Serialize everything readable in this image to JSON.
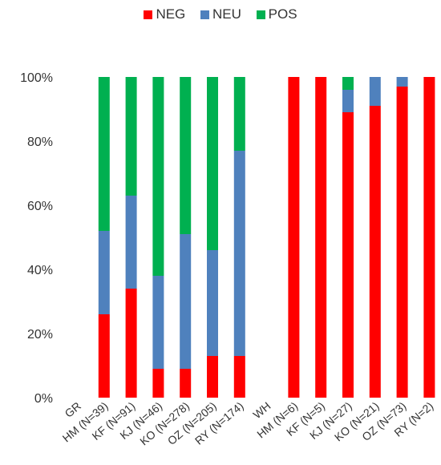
{
  "chart_data": {
    "type": "bar",
    "stacked": true,
    "ylim": [
      0,
      100
    ],
    "yticks": [
      "0%",
      "20%",
      "40%",
      "60%",
      "80%",
      "100%"
    ],
    "legend_position": "top",
    "categories": [
      "GR",
      "HM (N=39)",
      "KF (N=91)",
      "KJ (N=46)",
      "KO (N=278)",
      "OZ (N=205)",
      "RY (N=174)",
      "WH",
      "HM (N=6)",
      "KF (N=5)",
      "KJ (N=27)",
      "KO (N=21)",
      "OZ (N=73)",
      "RY (N=2)"
    ],
    "series": [
      {
        "name": "NEG",
        "color": "#ff0000",
        "values": [
          null,
          26,
          34,
          9,
          9,
          13,
          13,
          null,
          100,
          100,
          89,
          91,
          97,
          100
        ]
      },
      {
        "name": "NEU",
        "color": "#4f81bd",
        "values": [
          null,
          26,
          29,
          29,
          42,
          33,
          64,
          null,
          0,
          0,
          7,
          9,
          3,
          0
        ]
      },
      {
        "name": "POS",
        "color": "#00b050",
        "values": [
          null,
          48,
          37,
          62,
          49,
          54,
          23,
          null,
          0,
          0,
          4,
          0,
          0,
          0
        ]
      }
    ]
  }
}
